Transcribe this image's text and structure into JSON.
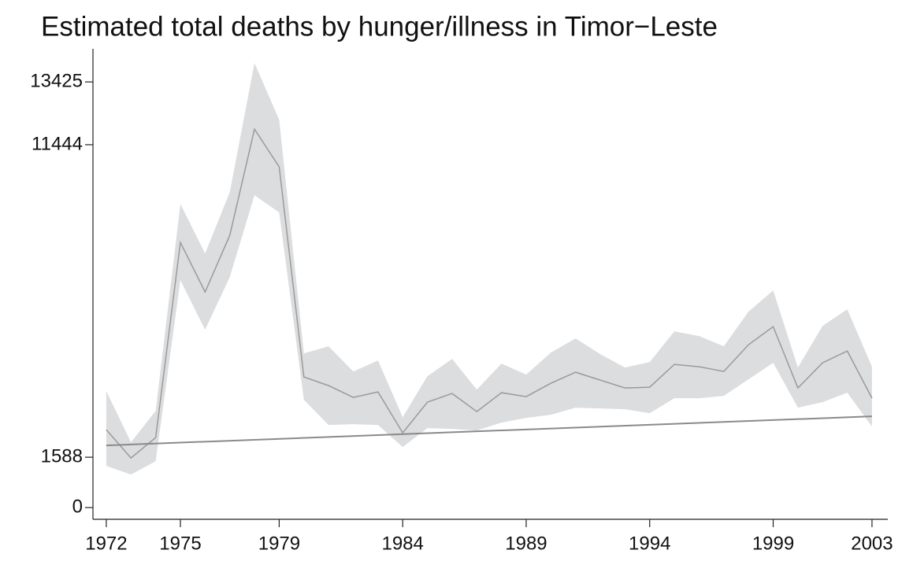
{
  "chart_data": {
    "type": "line",
    "title": "Estimated total deaths by hunger/illness in Timor−Leste",
    "x": [
      1972,
      1973,
      1974,
      1975,
      1976,
      1977,
      1978,
      1979,
      1980,
      1981,
      1982,
      1983,
      1984,
      1985,
      1986,
      1987,
      1988,
      1989,
      1990,
      1991,
      1992,
      1993,
      1994,
      1995,
      1996,
      1997,
      1998,
      1999,
      2000,
      2001,
      2002,
      2003
    ],
    "series": [
      {
        "color": "#9a9a9a",
        "values": [
          2457,
          1563,
          2208,
          8362,
          6799,
          8586,
          11935,
          10744,
          4119,
          3846,
          3474,
          3648,
          2357,
          3325,
          3598,
          3027,
          3623,
          3499,
          3921,
          4268,
          4020,
          3772,
          3797,
          4516,
          4442,
          4293,
          5136,
          5707,
          3772,
          4566,
          4938,
          3449
        ],
        "band": {
          "color": "#dcdddf",
          "upper": [
            3672,
            2060,
            3052,
            9578,
            8015,
            9950,
            14020,
            12233,
            4864,
            5087,
            4293,
            4640,
            2854,
            4144,
            4690,
            3722,
            4541,
            4194,
            4888,
            5335,
            4839,
            4417,
            4591,
            5558,
            5409,
            5087,
            6179,
            6849,
            4417,
            5732,
            6253,
            4442
          ],
          "lower": [
            1315,
            1042,
            1464,
            7171,
            5608,
            7270,
            9851,
            9305,
            3400,
            2605,
            2630,
            2605,
            1911,
            2506,
            2481,
            2432,
            2680,
            2829,
            2928,
            3151,
            3127,
            3102,
            2978,
            3449,
            3449,
            3524,
            4045,
            4566,
            3151,
            3325,
            3623,
            2556
          ]
        }
      },
      {
        "color": "#8a8a8a",
        "x": [
          1972,
          2003
        ],
        "values": [
          1960,
          2878
        ]
      }
    ],
    "xlim": [
      1971.46,
      2003.64
    ],
    "xticks": [
      1972,
      1975,
      1979,
      1984,
      1989,
      1994,
      1999,
      2003
    ],
    "ylim": [
      -370,
      14470
    ],
    "yticks": [
      0,
      1588,
      11444,
      13425
    ]
  }
}
